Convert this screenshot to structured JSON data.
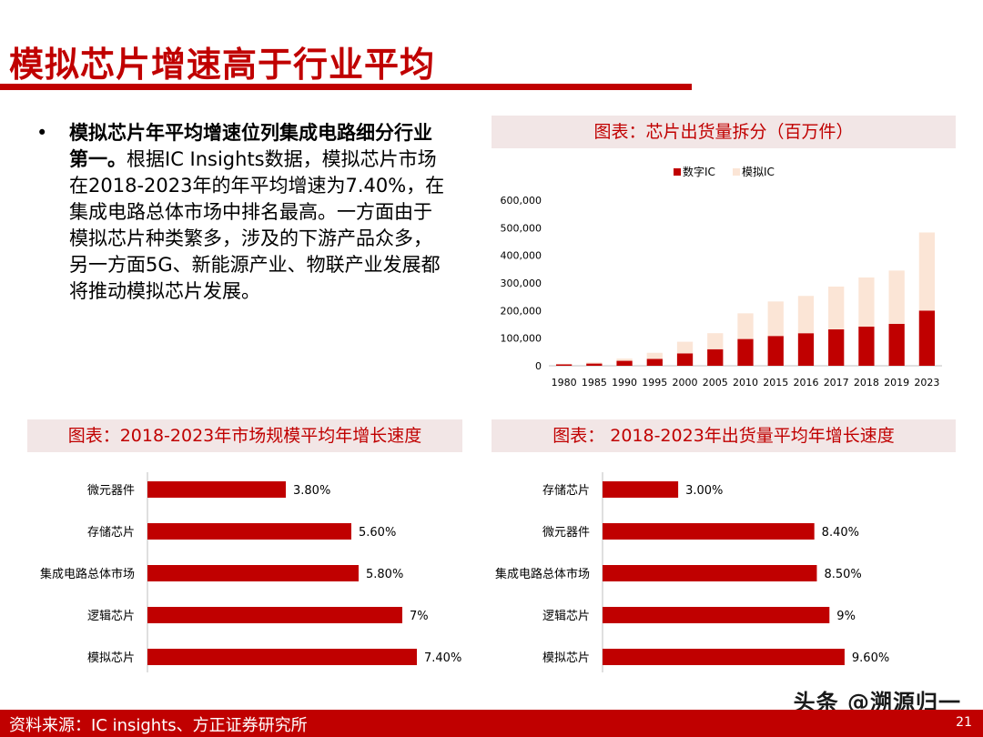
{
  "title": "模拟芯片增速高于行业平均",
  "bullet": {
    "bold": "模拟芯片年平均增速位列集成电路细分行业第一。",
    "text": "根据IC Insights数据，模拟芯片市场在2018-2023年的年平均增速为7.40%，在集成电路总体市场中排名最高。一方面由于模拟芯片种类繁多，涉及的下游产品众多，另一方面5G、新能源产业、物联产业发展都将推动模拟芯片发展。"
  },
  "footer": {
    "source": "资料来源：IC insights、方正证券研究所",
    "page": "21"
  },
  "watermark": "头条 @溯源归一",
  "colors": {
    "accent": "#c00000",
    "light": "#fbe5d6",
    "header_bg": "#f2e6e6"
  },
  "chart_data": [
    {
      "type": "bar",
      "stacked": true,
      "title": "图表：芯片出货量拆分（百万件）",
      "categories": [
        "1980",
        "1985",
        "1990",
        "1995",
        "2000",
        "2005",
        "2010",
        "2015",
        "2016",
        "2017",
        "2018",
        "2019",
        "2023"
      ],
      "series": [
        {
          "name": "数字IC",
          "color": "#c00000",
          "values": [
            5000,
            8000,
            18000,
            25000,
            45000,
            60000,
            97000,
            108000,
            118000,
            132000,
            142000,
            152000,
            200000
          ]
        },
        {
          "name": "模拟IC",
          "color": "#fbe5d6",
          "values": [
            2000,
            4000,
            8000,
            22000,
            42000,
            58000,
            93000,
            125000,
            135000,
            155000,
            178000,
            193000,
            283000
          ]
        }
      ],
      "ylim": [
        0,
        600000
      ],
      "yticks": [
        "0",
        "100,000",
        "200,000",
        "300,000",
        "400,000",
        "500,000",
        "600,000"
      ],
      "legend": "top"
    },
    {
      "type": "bar",
      "orientation": "horizontal",
      "title": "图表：2018-2023年市场规模平均年增长速度",
      "categories": [
        "微元器件",
        "存储芯片",
        "集成电路总体市场",
        "逻辑芯片",
        "模拟芯片"
      ],
      "values": [
        3.8,
        5.6,
        5.8,
        7.0,
        7.4
      ],
      "labels": [
        "3.80%",
        "5.60%",
        "5.80%",
        "7%",
        "7.40%"
      ],
      "xlim": [
        0,
        8
      ]
    },
    {
      "type": "bar",
      "orientation": "horizontal",
      "title": "图表： 2018-2023年出货量平均年增长速度",
      "categories": [
        "存储芯片",
        "微元器件",
        "集成电路总体市场",
        "逻辑芯片",
        "模拟芯片"
      ],
      "values": [
        3.0,
        8.4,
        8.5,
        9.0,
        9.6
      ],
      "labels": [
        "3.00%",
        "8.40%",
        "8.50%",
        "9%",
        "9.60%"
      ],
      "xlim": [
        0,
        11
      ]
    }
  ]
}
